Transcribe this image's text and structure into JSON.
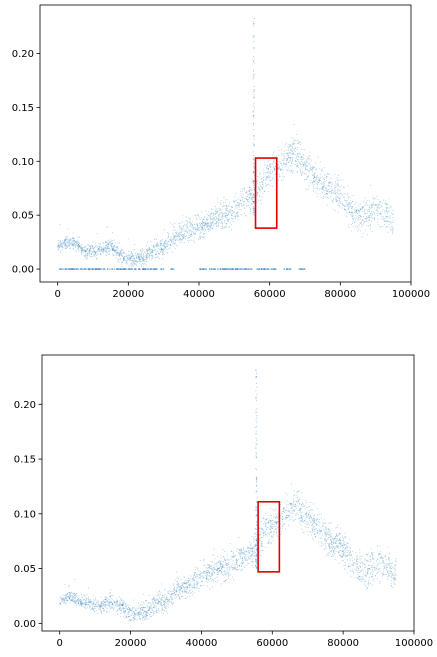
{
  "chart_data": [
    {
      "type": "scatter",
      "title": "",
      "xlabel": "",
      "ylabel": "",
      "xlim": [
        -5000,
        100000
      ],
      "ylim": [
        -0.012,
        0.245
      ],
      "xticks": [
        0,
        20000,
        40000,
        60000,
        80000,
        100000
      ],
      "xtick_labels": [
        "0",
        "20000",
        "40000",
        "60000",
        "80000",
        "100000"
      ],
      "yticks": [
        0.0,
        0.05,
        0.1,
        0.15,
        0.2
      ],
      "ytick_labels": [
        "0.00",
        "0.05",
        "0.10",
        "0.15",
        "0.20"
      ],
      "point_color": "#1f77b4",
      "highlight_color": "#e00000",
      "trend": [
        [
          0,
          0.02
        ],
        [
          3000,
          0.026
        ],
        [
          6000,
          0.022
        ],
        [
          8000,
          0.016
        ],
        [
          12000,
          0.018
        ],
        [
          15000,
          0.022
        ],
        [
          18000,
          0.012
        ],
        [
          20000,
          0.008
        ],
        [
          24000,
          0.01
        ],
        [
          27000,
          0.018
        ],
        [
          30000,
          0.02
        ],
        [
          33000,
          0.03
        ],
        [
          37000,
          0.036
        ],
        [
          41000,
          0.04
        ],
        [
          45000,
          0.048
        ],
        [
          48000,
          0.05
        ],
        [
          52000,
          0.06
        ],
        [
          55000,
          0.068
        ],
        [
          58000,
          0.082
        ],
        [
          61000,
          0.09
        ],
        [
          64000,
          0.1
        ],
        [
          67000,
          0.108
        ],
        [
          70000,
          0.095
        ],
        [
          75000,
          0.08
        ],
        [
          80000,
          0.068
        ],
        [
          83000,
          0.055
        ],
        [
          86000,
          0.045
        ],
        [
          88000,
          0.052
        ],
        [
          91000,
          0.055
        ],
        [
          95000,
          0.045
        ]
      ],
      "zero_band_segments": [
        [
          0,
          30000
        ],
        [
          32000,
          33000
        ],
        [
          40000,
          55000
        ],
        [
          56000,
          62000
        ],
        [
          64000,
          66000
        ],
        [
          68000,
          70000
        ]
      ],
      "spike_x": 55500,
      "spike_max": 0.235,
      "highlight_box": {
        "x_min": 56000,
        "x_max": 62000,
        "y_min": 0.038,
        "y_max": 0.103
      }
    },
    {
      "type": "scatter",
      "title": "",
      "xlabel": "",
      "ylabel": "",
      "xlim": [
        -5000,
        100000
      ],
      "ylim": [
        -0.007,
        0.245
      ],
      "xticks": [
        0,
        20000,
        40000,
        60000,
        80000,
        100000
      ],
      "xtick_labels": [
        "0",
        "20000",
        "40000",
        "60000",
        "80000",
        "100000"
      ],
      "yticks": [
        0.0,
        0.05,
        0.1,
        0.15,
        0.2
      ],
      "ytick_labels": [
        "0.00",
        "0.05",
        "0.10",
        "0.15",
        "0.20"
      ],
      "point_color": "#1f77b4",
      "highlight_color": "#e00000",
      "trend": [
        [
          0,
          0.02
        ],
        [
          3000,
          0.024
        ],
        [
          6000,
          0.02
        ],
        [
          9000,
          0.017
        ],
        [
          12000,
          0.016
        ],
        [
          15000,
          0.02
        ],
        [
          18000,
          0.014
        ],
        [
          20000,
          0.01
        ],
        [
          24000,
          0.01
        ],
        [
          27000,
          0.018
        ],
        [
          30000,
          0.02
        ],
        [
          33000,
          0.03
        ],
        [
          37000,
          0.036
        ],
        [
          41000,
          0.045
        ],
        [
          45000,
          0.05
        ],
        [
          48000,
          0.052
        ],
        [
          52000,
          0.06
        ],
        [
          55000,
          0.068
        ],
        [
          58000,
          0.085
        ],
        [
          61000,
          0.09
        ],
        [
          64000,
          0.1
        ],
        [
          67000,
          0.108
        ],
        [
          70000,
          0.095
        ],
        [
          75000,
          0.08
        ],
        [
          80000,
          0.068
        ],
        [
          83000,
          0.055
        ],
        [
          86000,
          0.045
        ],
        [
          88000,
          0.052
        ],
        [
          91000,
          0.055
        ],
        [
          95000,
          0.045
        ]
      ],
      "zero_band_segments": [],
      "spike_x": 55500,
      "spike_max": 0.235,
      "highlight_box": {
        "x_min": 56000,
        "x_max": 62000,
        "y_min": 0.047,
        "y_max": 0.111
      }
    }
  ]
}
